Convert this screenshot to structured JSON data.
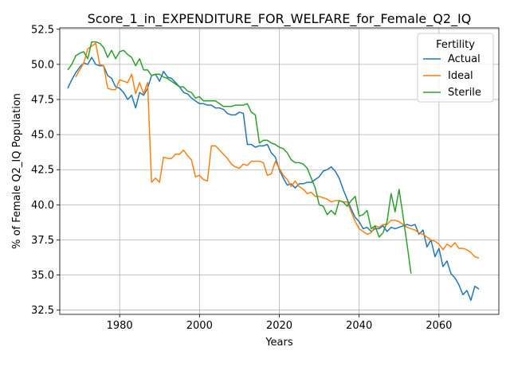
{
  "chart_data": {
    "type": "line",
    "title": "Score_1_in_EXPENDITURE_FOR_WELFARE_for_Female_Q2_IQ",
    "xlabel": "Years",
    "ylabel": "% of Female Q2_IQ Population",
    "xlim": [
      1965,
      2075
    ],
    "ylim": [
      32.2,
      52.6
    ],
    "x_ticks": [
      1980,
      2000,
      2020,
      2040,
      2060
    ],
    "y_ticks": [
      32.5,
      35.0,
      37.5,
      40.0,
      42.5,
      45.0,
      47.5,
      50.0,
      52.5
    ],
    "y_tick_labels": [
      "32.5",
      "35.0",
      "37.5",
      "40.0",
      "42.5",
      "45.0",
      "47.5",
      "50.0",
      "52.5"
    ],
    "grid": true,
    "legend": {
      "title": "Fertility",
      "placement": "top-right"
    },
    "series": [
      {
        "name": "Actual",
        "color": "#1f77b4",
        "x": [
          1967,
          1968,
          1969,
          1970,
          1971,
          1972,
          1973,
          1974,
          1975,
          1976,
          1977,
          1978,
          1979,
          1980,
          1981,
          1982,
          1983,
          1984,
          1985,
          1986,
          1987,
          1988,
          1989,
          1990,
          1991,
          1992,
          1993,
          1994,
          1995,
          1996,
          1997,
          1998,
          1999,
          2000,
          2001,
          2002,
          2003,
          2004,
          2005,
          2006,
          2007,
          2008,
          2009,
          2010,
          2011,
          2012,
          2013,
          2014,
          2015,
          2016,
          2017,
          2018,
          2019,
          2020,
          2021,
          2022,
          2023,
          2024,
          2025,
          2026,
          2027,
          2028,
          2029,
          2030,
          2031,
          2032,
          2033,
          2034,
          2035,
          2036,
          2037,
          2038,
          2039,
          2040,
          2041,
          2042,
          2043,
          2044,
          2045,
          2046,
          2047,
          2048,
          2049,
          2050,
          2051,
          2052,
          2053,
          2054,
          2055,
          2056,
          2057,
          2058,
          2059,
          2060,
          2061,
          2062,
          2063,
          2064,
          2065,
          2066,
          2067,
          2068,
          2069,
          2070
        ],
        "y": [
          48.3,
          48.9,
          49.4,
          49.8,
          50.1,
          50.0,
          50.5,
          50.0,
          49.9,
          49.9,
          49.2,
          49.0,
          48.4,
          48.3,
          48.0,
          47.5,
          47.8,
          46.9,
          48.0,
          47.8,
          48.3,
          49.2,
          49.3,
          48.8,
          49.5,
          49.1,
          49.0,
          48.7,
          48.4,
          48.0,
          47.9,
          47.6,
          47.4,
          47.2,
          47.2,
          47.1,
          47.1,
          46.9,
          46.9,
          46.8,
          46.5,
          46.4,
          46.4,
          46.6,
          46.5,
          44.3,
          44.3,
          44.1,
          44.2,
          44.2,
          44.3,
          43.7,
          43.4,
          42.5,
          41.9,
          41.4,
          41.5,
          41.2,
          41.5,
          41.5,
          41.6,
          41.6,
          41.8,
          42.0,
          42.4,
          42.5,
          42.7,
          42.4,
          41.9,
          41.1,
          40.4,
          39.7,
          39.1,
          38.8,
          38.3,
          38.4,
          38.1,
          38.3,
          38.3,
          38.5,
          38.1,
          38.4,
          38.3,
          38.4,
          38.5,
          38.6,
          38.5,
          38.6,
          37.9,
          38.2,
          37.0,
          37.5,
          36.3,
          36.9,
          35.6,
          36.0,
          35.1,
          34.8,
          34.3,
          33.6,
          33.9,
          33.2,
          34.2,
          34.0
        ]
      },
      {
        "name": "Ideal",
        "color": "#ff7f0e",
        "x": [
          1969,
          1970,
          1971,
          1972,
          1973,
          1974,
          1975,
          1976,
          1977,
          1978,
          1979,
          1980,
          1981,
          1982,
          1983,
          1984,
          1985,
          1986,
          1987,
          1988,
          1989,
          1990,
          1991,
          1992,
          1993,
          1994,
          1995,
          1996,
          1997,
          1998,
          1999,
          2000,
          2001,
          2002,
          2003,
          2004,
          2005,
          2006,
          2007,
          2008,
          2009,
          2010,
          2011,
          2012,
          2013,
          2014,
          2015,
          2016,
          2017,
          2018,
          2019,
          2020,
          2021,
          2022,
          2023,
          2024,
          2025,
          2026,
          2027,
          2028,
          2029,
          2030,
          2031,
          2032,
          2033,
          2034,
          2035,
          2036,
          2037,
          2038,
          2039,
          2040,
          2041,
          2042,
          2043,
          2044,
          2045,
          2046,
          2047,
          2048,
          2049,
          2050,
          2051,
          2052,
          2053,
          2054,
          2055,
          2056,
          2057,
          2058,
          2059,
          2060,
          2061,
          2062,
          2063,
          2064,
          2065,
          2066,
          2067,
          2068,
          2069,
          2070
        ],
        "y": [
          49.1,
          49.6,
          50.1,
          51.1,
          51.3,
          51.5,
          50.0,
          49.9,
          48.3,
          48.2,
          48.2,
          48.9,
          48.8,
          48.7,
          49.3,
          47.9,
          48.7,
          47.9,
          48.7,
          41.6,
          41.9,
          41.6,
          43.4,
          43.3,
          43.3,
          43.6,
          43.6,
          43.9,
          43.5,
          43.2,
          42.0,
          42.1,
          41.8,
          41.7,
          44.2,
          44.2,
          43.9,
          43.6,
          43.3,
          42.9,
          42.7,
          42.6,
          42.9,
          42.8,
          43.1,
          43.1,
          43.1,
          43.0,
          42.1,
          42.2,
          43.1,
          42.6,
          42.1,
          41.8,
          41.3,
          41.7,
          41.3,
          41.1,
          40.8,
          40.9,
          40.6,
          40.6,
          40.5,
          40.4,
          40.2,
          40.3,
          40.3,
          40.2,
          40.2,
          39.5,
          38.8,
          38.3,
          38.1,
          37.9,
          38.0,
          38.5,
          38.4,
          38.6,
          38.6,
          38.9,
          38.9,
          38.8,
          38.6,
          38.4,
          38.3,
          38.2,
          38.0,
          37.9,
          37.7,
          37.5,
          37.4,
          37.2,
          36.8,
          37.2,
          37.0,
          37.3,
          36.9,
          36.9,
          36.8,
          36.6,
          36.3,
          36.2
        ]
      },
      {
        "name": "Sterile",
        "color": "#2ca02c",
        "x": [
          1967,
          1968,
          1969,
          1970,
          1971,
          1972,
          1973,
          1974,
          1975,
          1976,
          1977,
          1978,
          1979,
          1980,
          1981,
          1982,
          1983,
          1984,
          1985,
          1986,
          1987,
          1988,
          1989,
          1990,
          1991,
          1992,
          1993,
          1994,
          1995,
          1996,
          1997,
          1998,
          1999,
          2000,
          2001,
          2002,
          2003,
          2004,
          2005,
          2006,
          2007,
          2008,
          2009,
          2010,
          2011,
          2012,
          2013,
          2014,
          2015,
          2016,
          2017,
          2018,
          2019,
          2020,
          2021,
          2022,
          2023,
          2024,
          2025,
          2026,
          2027,
          2028,
          2029,
          2030,
          2031,
          2032,
          2033,
          2034,
          2035,
          2036,
          2037,
          2038,
          2039,
          2040,
          2041,
          2042,
          2043,
          2044,
          2045,
          2046,
          2047,
          2048,
          2049,
          2050,
          2051,
          2052,
          2053
        ],
        "y": [
          49.6,
          50.0,
          50.6,
          50.8,
          50.9,
          50.4,
          51.6,
          51.6,
          51.5,
          51.2,
          50.5,
          51.0,
          50.4,
          50.9,
          51.0,
          50.7,
          50.5,
          49.9,
          50.4,
          49.6,
          49.6,
          49.2,
          49.3,
          49.3,
          49.1,
          49.0,
          48.8,
          48.6,
          48.4,
          48.4,
          48.1,
          48.0,
          47.6,
          47.7,
          47.4,
          47.4,
          47.4,
          47.4,
          47.2,
          47.0,
          47.0,
          47.0,
          47.1,
          47.1,
          47.1,
          47.2,
          46.6,
          46.4,
          44.4,
          44.6,
          44.6,
          44.4,
          44.3,
          44.1,
          44.0,
          43.7,
          43.2,
          43.0,
          43.0,
          42.9,
          42.6,
          41.9,
          41.2,
          40.0,
          39.9,
          39.3,
          39.6,
          39.3,
          40.3,
          40.2,
          39.9,
          40.3,
          40.6,
          39.2,
          39.3,
          39.6,
          38.3,
          38.5,
          37.7,
          38.0,
          38.8,
          40.8,
          39.5,
          41.1,
          39.2,
          37.2,
          35.1
        ]
      }
    ]
  }
}
